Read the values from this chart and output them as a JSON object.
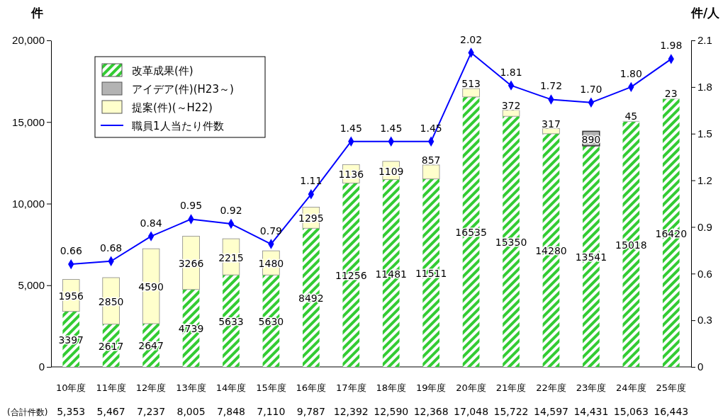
{
  "chart_data": {
    "type": "bar",
    "stacked": true,
    "ylabel": "件",
    "y2label": "件/人",
    "categories": [
      "10年度",
      "11年度",
      "12年度",
      "13年度",
      "14年度",
      "15年度",
      "16年度",
      "17年度",
      "18年度",
      "19年度",
      "20年度",
      "21年度",
      "22年度",
      "23年度",
      "24年度",
      "25年度"
    ],
    "series": [
      {
        "name": "改革成果(件)",
        "color": "#33cc33",
        "values": [
          3397,
          2617,
          2647,
          4739,
          5633,
          5630,
          8492,
          11256,
          11481,
          11511,
          16535,
          15350,
          14280,
          13541,
          15018,
          16420
        ]
      },
      {
        "name": "アイデア(件)(H23～)",
        "color": "#b3b3b3",
        "values": [
          null,
          null,
          null,
          null,
          null,
          null,
          null,
          null,
          null,
          null,
          null,
          null,
          null,
          890,
          45,
          23
        ]
      },
      {
        "name": "提案(件)(～H22)",
        "color": "#ffffcc",
        "values": [
          1956,
          2850,
          4590,
          3266,
          2215,
          1480,
          1295,
          1136,
          1109,
          857,
          513,
          372,
          317,
          null,
          null,
          null
        ]
      },
      {
        "name": "職員1人当たり件数",
        "type": "line",
        "axis": "y2",
        "color": "#0000ff",
        "marker": "diamond",
        "values": [
          0.66,
          0.68,
          0.84,
          0.95,
          0.92,
          0.79,
          1.11,
          1.45,
          1.45,
          1.45,
          2.02,
          1.81,
          1.72,
          1.7,
          1.8,
          1.98
        ],
        "value_labels": [
          "0.66",
          "0.68",
          "0.84",
          "0.95",
          "0.92",
          "0.79",
          "1.11",
          "1.45",
          "1.45",
          "1.45",
          "2.02",
          "1.81",
          "1.72",
          "1.70",
          "1.80",
          "1.98"
        ]
      }
    ],
    "data_labels": true,
    "annotations": [
      "(合計件数)",
      "5,353",
      "5,467",
      "7,237",
      "8,005",
      "7,848",
      "7,110",
      "9,787",
      "12,392",
      "12,590",
      "12,368",
      "17,048",
      "15,722",
      "14,597",
      "14,431",
      "15,063",
      "16,443"
    ],
    "ylim": [
      0,
      20000
    ],
    "yticks": [
      0,
      {
        "value": 5000,
        "label": "5,000"
      },
      {
        "value": 10000,
        "label": "10,000"
      },
      {
        "value": 15000,
        "label": "15,000"
      },
      {
        "value": 20000,
        "label": "20,000"
      }
    ],
    "y2lim": [
      0,
      2.1
    ],
    "y2ticks": [
      0,
      0.3,
      0.6,
      0.9,
      1.2,
      1.5,
      1.8,
      2.1
    ],
    "grid": false,
    "legend": "top left"
  }
}
